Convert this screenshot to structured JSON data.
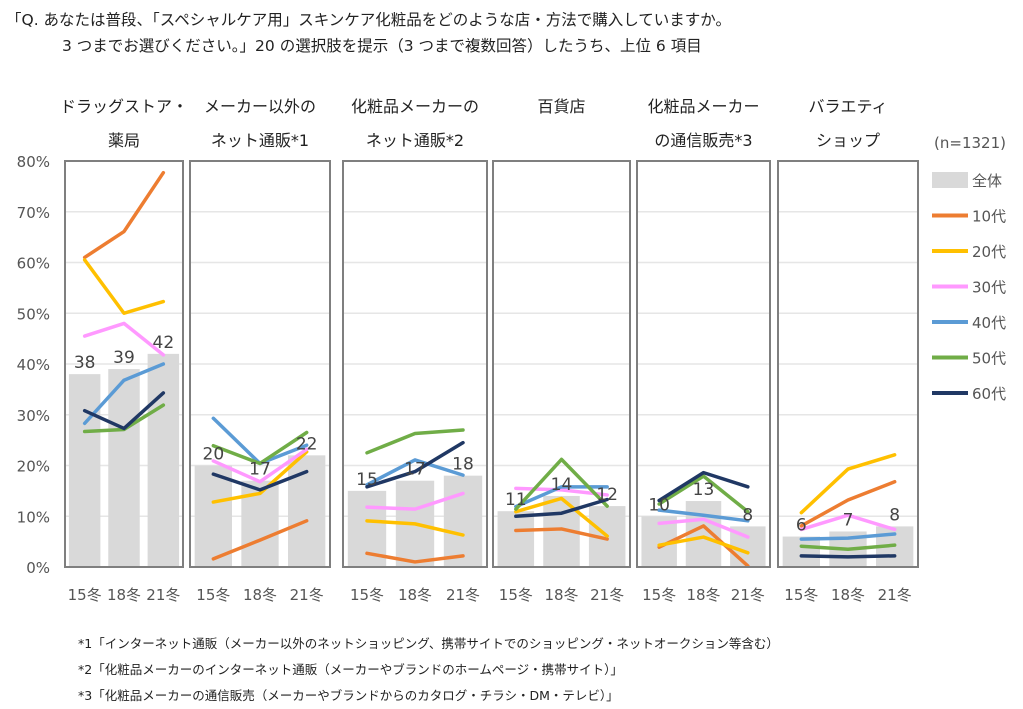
{
  "question": {
    "line1": "「Q. あなたは普段、「スペシャルケア用」スキンケア化粧品をどのような店・方法で購入していますか。",
    "line2": "3 つまでお選びください。」20 の選択肢を提示（3 つまで複数回答）したうち、上位 6 項目"
  },
  "footnotes": [
    "*1「インターネット通販（メーカー以外のネットショッピング、携帯サイトでのショッピング・ネットオークション等含む）",
    "*2「化粧品メーカーのインターネット通販（メーカーやブランドのホームページ・携帯サイト）」",
    "*3「化粧品メーカーの通信販売（メーカーやブランドからのカタログ・チラシ・DM・テレビ）」"
  ],
  "chart_data": {
    "type": "bar+line small multiples",
    "sample_note": "(n=1321)",
    "yticks": [
      "0%",
      "10%",
      "20%",
      "30%",
      "40%",
      "50%",
      "60%",
      "70%",
      "80%"
    ],
    "ylim": [
      0,
      80
    ],
    "grid": true,
    "legend_placement": "right",
    "categories": [
      "15冬",
      "18冬",
      "21冬"
    ],
    "legend": [
      {
        "name": "全体",
        "color": "#d9d9d9",
        "kind": "bar"
      },
      {
        "name": "10代",
        "color": "#ed7d31",
        "kind": "line"
      },
      {
        "name": "20代",
        "color": "#ffc000",
        "kind": "line"
      },
      {
        "name": "30代",
        "color": "#ff99ff",
        "kind": "line"
      },
      {
        "name": "40代",
        "color": "#5b9bd5",
        "kind": "line"
      },
      {
        "name": "50代",
        "color": "#70ad47",
        "kind": "line"
      },
      {
        "name": "60代",
        "color": "#203864",
        "kind": "line"
      }
    ],
    "panels": [
      {
        "title": [
          "ドラッグストア・",
          "薬局"
        ],
        "bars": [
          38,
          39,
          42
        ],
        "lines": {
          "10代": [
            61.0,
            66.1,
            77.7
          ],
          "20代": [
            60.5,
            50.0,
            52.3
          ],
          "30代": [
            45.5,
            48.0,
            41.8
          ],
          "40代": [
            28.3,
            36.8,
            40.0
          ],
          "50代": [
            26.7,
            27.1,
            31.9
          ],
          "60代": [
            30.8,
            27.3,
            34.3
          ]
        }
      },
      {
        "title": [
          "メーカー以外の",
          "ネット通販*1"
        ],
        "bars": [
          20,
          17,
          22
        ],
        "lines": {
          "10代": [
            1.6,
            5.3,
            9.1
          ],
          "20代": [
            12.8,
            14.5,
            22.7
          ],
          "30代": [
            20.9,
            16.8,
            23.2
          ],
          "40代": [
            29.3,
            20.4,
            24.0
          ],
          "50代": [
            23.9,
            20.4,
            26.5
          ],
          "60代": [
            18.3,
            15.2,
            18.8
          ]
        }
      },
      {
        "title": [
          "化粧品メーカーの",
          "ネット通販*2"
        ],
        "bars": [
          15,
          17,
          18
        ],
        "lines": {
          "10代": [
            2.7,
            1.0,
            2.2
          ],
          "20代": [
            9.1,
            8.5,
            6.3
          ],
          "30代": [
            11.8,
            11.4,
            14.5
          ],
          "40代": [
            16.2,
            21.1,
            18.1
          ],
          "50代": [
            22.5,
            26.3,
            27.0
          ],
          "60代": [
            15.8,
            18.8,
            24.5
          ]
        }
      },
      {
        "title": [
          "百貨店",
          ""
        ],
        "bars": [
          11,
          14,
          12
        ],
        "lines": {
          "10代": [
            7.2,
            7.5,
            5.5
          ],
          "20代": [
            10.9,
            13.5,
            6.1
          ],
          "30代": [
            15.5,
            15.2,
            14.2
          ],
          "40代": [
            11.9,
            15.8,
            15.8
          ],
          "50代": [
            11.4,
            21.2,
            12.0
          ],
          "60代": [
            10.0,
            10.6,
            13.3
          ]
        }
      },
      {
        "title": [
          "化粧品メーカー",
          "の通信販売*3"
        ],
        "bars": [
          10,
          13,
          8
        ],
        "lines": {
          "10代": [
            3.9,
            8.1,
            0.2
          ],
          "20代": [
            4.3,
            5.9,
            2.8
          ],
          "30代": [
            8.6,
            9.4,
            5.9
          ],
          "40代": [
            11.2,
            10.2,
            9.1
          ],
          "50代": [
            12.4,
            17.9,
            10.9
          ],
          "60代": [
            13.1,
            18.6,
            15.8
          ]
        }
      },
      {
        "title": [
          "バラエティ",
          "ショップ"
        ],
        "bars": [
          6,
          7,
          8
        ],
        "lines": {
          "10代": [
            8.1,
            13.2,
            16.8
          ],
          "20代": [
            10.7,
            19.3,
            22.1
          ],
          "30代": [
            7.4,
            10.2,
            7.4
          ],
          "40代": [
            5.5,
            5.7,
            6.5
          ],
          "50代": [
            4.1,
            3.5,
            4.3
          ],
          "60代": [
            2.2,
            2.0,
            2.2
          ]
        }
      }
    ]
  }
}
